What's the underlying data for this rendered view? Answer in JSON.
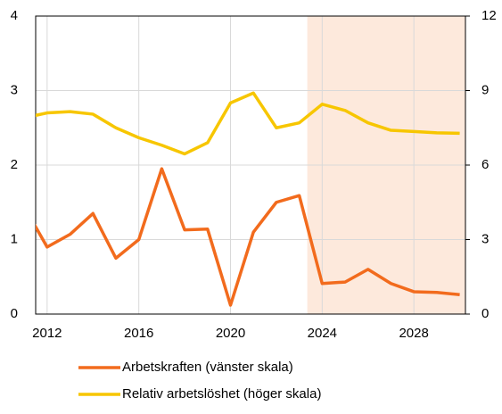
{
  "chart_data": {
    "type": "line",
    "x": [
      2011,
      2012,
      2013,
      2014,
      2015,
      2016,
      2017,
      2018,
      2019,
      2020,
      2021,
      2022,
      2023,
      2024,
      2025,
      2026,
      2027,
      2028,
      2029,
      2030
    ],
    "series": [
      {
        "name": "Arbetskraften (vänster skala)",
        "color": "#f26b1d",
        "axis": "y",
        "values": [
          1.44,
          0.9,
          1.07,
          1.35,
          0.75,
          1.0,
          1.95,
          1.13,
          1.14,
          0.12,
          1.1,
          1.5,
          1.59,
          0.41,
          0.43,
          0.6,
          0.41,
          0.3,
          0.29,
          0.26
        ]
      },
      {
        "name": "Relativ arbetslöshet (höger skala)",
        "color": "#f7c600",
        "axis": "y2",
        "values": [
          7.9,
          8.1,
          8.15,
          8.05,
          7.5,
          7.1,
          6.8,
          6.45,
          6.9,
          8.5,
          8.9,
          7.5,
          7.7,
          8.45,
          8.2,
          7.7,
          7.4,
          7.35,
          7.3,
          7.28
        ]
      }
    ],
    "xlim": [
      2011.5,
      2030.25
    ],
    "xticks": [
      2012,
      2016,
      2020,
      2024,
      2028
    ],
    "ylim": [
      0,
      4
    ],
    "yticks": [
      0,
      1,
      2,
      3,
      4
    ],
    "y2lim": [
      0,
      12
    ],
    "y2ticks": [
      0,
      3,
      6,
      9,
      12
    ],
    "forecast_start": 2023.35,
    "forecast_color": "#fde9dc",
    "grid": true
  }
}
